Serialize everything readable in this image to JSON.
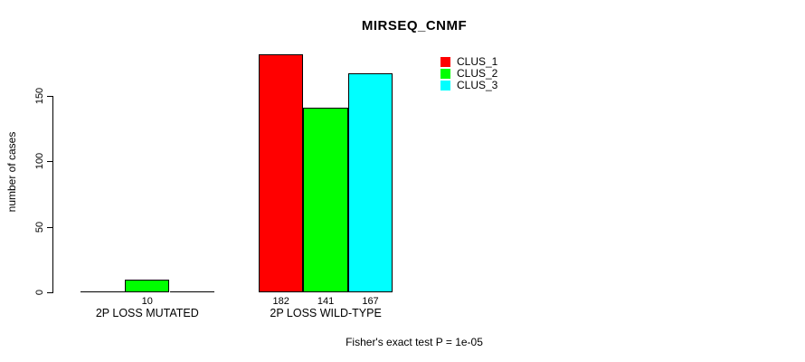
{
  "chart_data": {
    "type": "bar",
    "title": "MIRSEQ_CNMF",
    "ylabel": "number of cases",
    "ylim": [
      0,
      150
    ],
    "yticks": [
      0,
      50,
      100,
      150
    ],
    "grid": false,
    "legend_position": "top-right",
    "categories": [
      "2P LOSS MUTATED",
      "2P LOSS WILD-TYPE"
    ],
    "series": [
      {
        "name": "CLUS_1",
        "color": "#ff0000",
        "values": [
          0,
          182
        ]
      },
      {
        "name": "CLUS_2",
        "color": "#00ff00",
        "values": [
          10,
          141
        ]
      },
      {
        "name": "CLUS_3",
        "color": "#00ffff",
        "values": [
          0,
          167
        ]
      }
    ],
    "bar_value_labels": [
      [
        "",
        "10",
        ""
      ],
      [
        "182",
        "141",
        "167"
      ]
    ],
    "footer": "Fisher's exact test P = 1e-05"
  }
}
